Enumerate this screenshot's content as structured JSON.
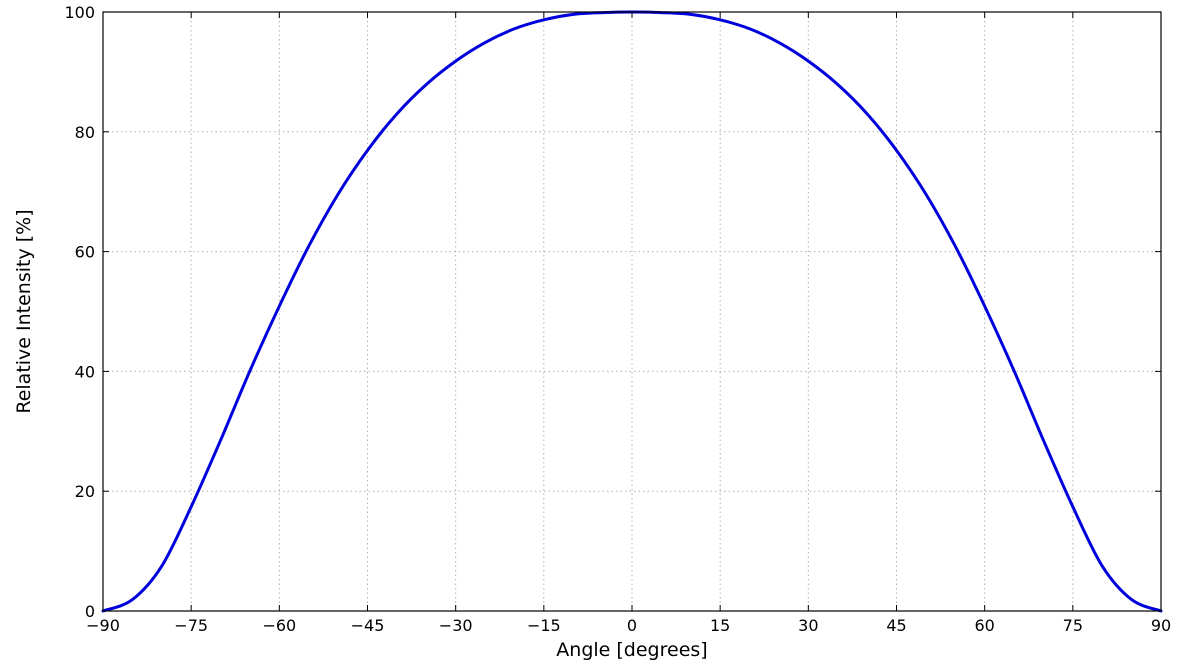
{
  "chart_data": {
    "type": "line",
    "title": "",
    "xlabel": "Angle [degrees]",
    "ylabel": "Relative Intensity [%]",
    "xlim": [
      -90,
      90
    ],
    "ylim": [
      0,
      100
    ],
    "xticks": [
      -90,
      -75,
      -60,
      -45,
      -30,
      -15,
      0,
      15,
      30,
      45,
      60,
      75,
      90
    ],
    "yticks": [
      0,
      20,
      40,
      60,
      80,
      100
    ],
    "xtick_labels": [
      "−90",
      "−75",
      "−60",
      "−45",
      "−30",
      "−15",
      "0",
      "15",
      "30",
      "45",
      "60",
      "75",
      "90"
    ],
    "ytick_labels": [
      "0",
      "20",
      "40",
      "60",
      "80",
      "100"
    ],
    "grid": true,
    "series": [
      {
        "color": "#0000dd",
        "x": [
          -90,
          -85,
          -80,
          -75,
          -70,
          -65,
          -60,
          -55,
          -50,
          -45,
          -40,
          -35,
          -30,
          -25,
          -20,
          -15,
          -10,
          -5,
          0,
          5,
          10,
          15,
          20,
          25,
          30,
          35,
          40,
          45,
          50,
          55,
          60,
          65,
          70,
          75,
          80,
          85,
          90
        ],
        "y": [
          0,
          1.9,
          7.5,
          17.4,
          28.5,
          40.1,
          50.9,
          60.9,
          69.6,
          76.9,
          83.0,
          87.9,
          91.8,
          94.9,
          97.2,
          98.7,
          99.6,
          99.9,
          100,
          99.9,
          99.6,
          98.7,
          97.2,
          94.9,
          91.8,
          87.9,
          83.0,
          76.9,
          69.6,
          60.9,
          50.9,
          40.1,
          28.5,
          17.4,
          7.5,
          1.9,
          0
        ]
      }
    ]
  }
}
